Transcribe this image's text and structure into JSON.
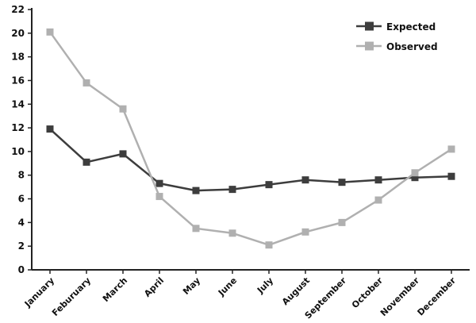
{
  "chart_data": {
    "type": "line",
    "title": "",
    "xlabel": "",
    "ylabel": "",
    "categories": [
      "January",
      "Feburuary",
      "March",
      "April",
      "May",
      "June",
      "July",
      "August",
      "September",
      "October",
      "November",
      "December"
    ],
    "series": [
      {
        "name": "Expected",
        "color": "#3d3d3d",
        "marker": "square",
        "values": [
          11.9,
          9.1,
          9.8,
          7.3,
          6.7,
          6.8,
          7.2,
          7.6,
          7.4,
          7.6,
          7.8,
          7.9
        ]
      },
      {
        "name": "Observed",
        "color": "#b0b0b0",
        "marker": "square",
        "values": [
          20.1,
          15.8,
          13.6,
          6.2,
          3.5,
          3.1,
          2.1,
          3.2,
          4.0,
          5.9,
          8.2,
          10.2
        ]
      }
    ],
    "ylim": [
      0,
      22
    ],
    "yticks": [
      0,
      2,
      4,
      6,
      8,
      10,
      12,
      14,
      16,
      18,
      20,
      22
    ],
    "ytick_labels": [
      "0",
      "2",
      "4",
      "6",
      "8",
      "10",
      "12",
      "14",
      "16",
      "18",
      "20",
      "22"
    ],
    "grid": false,
    "legend_position": "top-right"
  }
}
